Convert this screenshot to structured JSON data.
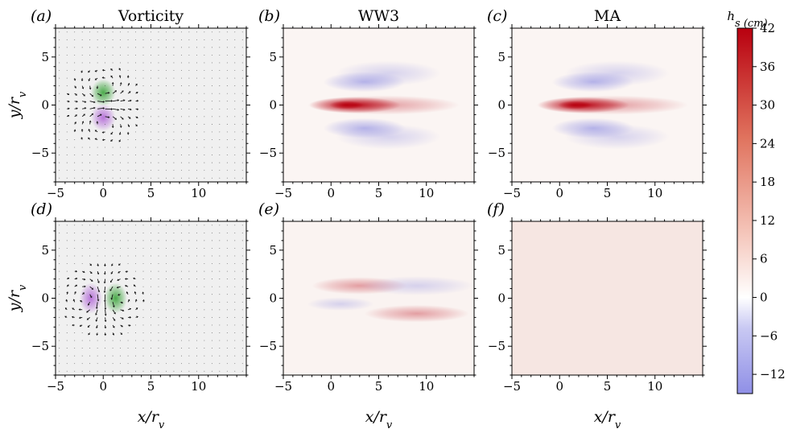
{
  "colors": {
    "positive": "#b8000f",
    "negative": "#8080e0",
    "vorticity_positive": "#2e9e2e",
    "vorticity_negative": "#a040d0",
    "background": "#ffffff"
  },
  "chart_data": [
    {
      "id": "a",
      "panel_label": "(a)",
      "title": "Vorticity",
      "type": "heatmap",
      "xlabel": "",
      "ylabel": "y/r_v",
      "xlim": [
        -5,
        15
      ],
      "ylim": [
        -8,
        8
      ],
      "xticks": [
        "−5",
        "0",
        "5",
        "10"
      ],
      "yticks": [
        "5",
        "0",
        "−5"
      ],
      "field": "dipole",
      "dipole_orientation": "horizontal",
      "vectors": true,
      "grid": false
    },
    {
      "id": "b",
      "panel_label": "(b)",
      "title": "WW3",
      "type": "heatmap",
      "xlabel": "",
      "ylabel": "",
      "xlim": [
        -5,
        15
      ],
      "ylim": [
        -8,
        8
      ],
      "xticks": [
        "−5",
        "0",
        "5",
        "10"
      ],
      "yticks": [
        "5",
        "0",
        "−5"
      ],
      "field": "wake",
      "peak_value": 42,
      "trough_value": -9,
      "grid": false
    },
    {
      "id": "c",
      "panel_label": "(c)",
      "title": "MA",
      "type": "heatmap",
      "xlabel": "",
      "ylabel": "",
      "xlim": [
        -5,
        15
      ],
      "ylim": [
        -8,
        8
      ],
      "xticks": [
        "−5",
        "0",
        "5",
        "10"
      ],
      "yticks": [
        "5",
        "0",
        "−5"
      ],
      "field": "wake",
      "peak_value": 40,
      "trough_value": -10,
      "grid": false
    },
    {
      "id": "d",
      "panel_label": "(d)",
      "title": "",
      "type": "heatmap",
      "xlabel": "x/r_v",
      "ylabel": "y/r_v",
      "xlim": [
        -5,
        15
      ],
      "ylim": [
        -8,
        8
      ],
      "xticks": [
        "−5",
        "0",
        "5",
        "10"
      ],
      "yticks": [
        "5",
        "0",
        "−5"
      ],
      "field": "dipole",
      "dipole_orientation": "vertical",
      "vectors": true,
      "grid": false
    },
    {
      "id": "e",
      "panel_label": "(e)",
      "title": "",
      "type": "heatmap",
      "xlabel": "x/r_v",
      "ylabel": "",
      "xlim": [
        -5,
        15
      ],
      "ylim": [
        -8,
        8
      ],
      "xticks": [
        "−5",
        "0",
        "5",
        "10"
      ],
      "yticks": [
        "5",
        "0",
        "−5"
      ],
      "field": "weak_wake",
      "peak_value": 6,
      "trough_value": -3,
      "grid": false
    },
    {
      "id": "f",
      "panel_label": "(f)",
      "title": "",
      "type": "heatmap",
      "xlabel": "x/r_v",
      "ylabel": "",
      "xlim": [
        -5,
        15
      ],
      "ylim": [
        -8,
        8
      ],
      "xticks": [
        "−5",
        "0",
        "5",
        "10"
      ],
      "yticks": [
        "5",
        "0",
        "−5"
      ],
      "field": "uniform",
      "value": 1,
      "grid": false
    }
  ],
  "colorbar": {
    "label": "h_s (cm)",
    "min": -15,
    "max": 42,
    "ticks": [
      "42",
      "36",
      "30",
      "24",
      "18",
      "12",
      "6",
      "0",
      "−6",
      "−12"
    ],
    "tick_values": [
      42,
      36,
      30,
      24,
      18,
      12,
      6,
      0,
      -6,
      -12
    ]
  }
}
